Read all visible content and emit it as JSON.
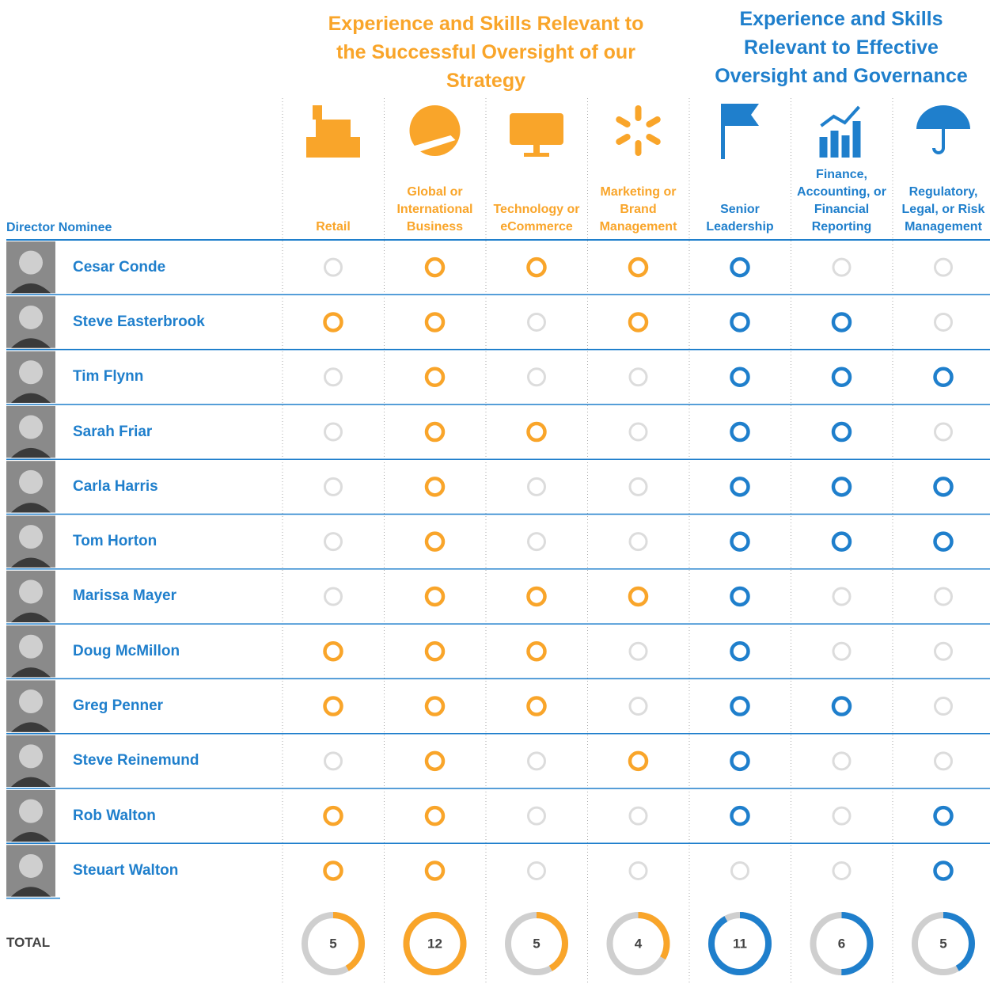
{
  "groups": [
    {
      "title": "Experience and Skills Relevant to the Successful Oversight of our Strategy",
      "color": "#f9a52a"
    },
    {
      "title": "Experience and Skills Relevant to Effective Oversight and Governance",
      "color": "#1f7fcc"
    }
  ],
  "row_header": "Director Nominee",
  "columns": [
    {
      "label": "Retail",
      "group": 0
    },
    {
      "label": "Global or International Business",
      "group": 0
    },
    {
      "label": "Technology or eCommerce",
      "group": 0
    },
    {
      "label": "Marketing or Brand Management",
      "group": 0
    },
    {
      "label": "Senior Leadership",
      "group": 1
    },
    {
      "label": "Finance, Accounting, or Financial Reporting",
      "group": 1
    },
    {
      "label": "Regulatory, Legal, or Risk Management",
      "group": 1
    }
  ],
  "rows": [
    {
      "name": "Cesar Conde",
      "skills": [
        false,
        true,
        true,
        true,
        true,
        false,
        false
      ]
    },
    {
      "name": "Steve Easterbrook",
      "skills": [
        true,
        true,
        false,
        true,
        true,
        true,
        false
      ]
    },
    {
      "name": "Tim Flynn",
      "skills": [
        false,
        true,
        false,
        false,
        true,
        true,
        true
      ]
    },
    {
      "name": "Sarah Friar",
      "skills": [
        false,
        true,
        true,
        false,
        true,
        true,
        false
      ]
    },
    {
      "name": "Carla Harris",
      "skills": [
        false,
        true,
        false,
        false,
        true,
        true,
        true
      ]
    },
    {
      "name": "Tom Horton",
      "skills": [
        false,
        true,
        false,
        false,
        true,
        true,
        true
      ]
    },
    {
      "name": "Marissa Mayer",
      "skills": [
        false,
        true,
        true,
        true,
        true,
        false,
        false
      ]
    },
    {
      "name": "Doug McMillon",
      "skills": [
        true,
        true,
        true,
        false,
        true,
        false,
        false
      ]
    },
    {
      "name": "Greg Penner",
      "skills": [
        true,
        true,
        true,
        false,
        true,
        true,
        false
      ]
    },
    {
      "name": "Steve Reinemund",
      "skills": [
        false,
        true,
        false,
        true,
        true,
        false,
        false
      ]
    },
    {
      "name": "Rob Walton",
      "skills": [
        true,
        true,
        false,
        false,
        true,
        false,
        true
      ]
    },
    {
      "name": "Steuart Walton",
      "skills": [
        true,
        true,
        false,
        false,
        false,
        false,
        true
      ]
    }
  ],
  "total_label": "TOTAL",
  "totals": [
    5,
    12,
    5,
    4,
    11,
    6,
    5
  ]
}
